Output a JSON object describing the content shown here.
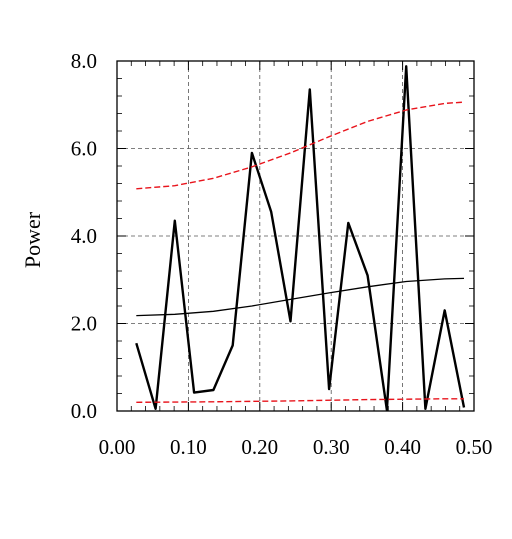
{
  "chart_data": {
    "type": "line",
    "title": "",
    "xlabel": "",
    "ylabel": "Power",
    "xlim": [
      0.0,
      0.5
    ],
    "ylim": [
      0.0,
      8.0
    ],
    "x_ticks": [
      "0.00",
      "0.10",
      "0.20",
      "0.30",
      "0.40",
      "0.50"
    ],
    "y_ticks": [
      "0.0",
      "2.0",
      "4.0",
      "6.0",
      "8.0"
    ],
    "grid": true,
    "legend": "none",
    "series": [
      {
        "color": "#000000",
        "style": "solid-thick",
        "x": [
          0.027,
          0.054,
          0.081,
          0.108,
          0.135,
          0.162,
          0.189,
          0.216,
          0.243,
          0.27,
          0.297,
          0.324,
          0.351,
          0.378,
          0.405,
          0.432,
          0.459,
          0.486
        ],
        "y": [
          1.55,
          0.05,
          4.35,
          0.42,
          0.48,
          1.5,
          5.9,
          4.55,
          2.05,
          7.35,
          0.5,
          4.3,
          3.1,
          0.02,
          7.88,
          0.05,
          2.3,
          0.08
        ]
      },
      {
        "color": "#000000",
        "style": "solid-thin",
        "x": [
          0.027,
          0.081,
          0.135,
          0.189,
          0.243,
          0.297,
          0.351,
          0.405,
          0.459,
          0.486
        ],
        "y": [
          2.18,
          2.21,
          2.28,
          2.4,
          2.55,
          2.7,
          2.84,
          2.96,
          3.02,
          3.03
        ]
      },
      {
        "color": "#e8141c",
        "style": "dashed",
        "x": [
          0.027,
          0.081,
          0.135,
          0.189,
          0.243,
          0.297,
          0.351,
          0.405,
          0.459,
          0.486
        ],
        "y": [
          5.08,
          5.15,
          5.32,
          5.58,
          5.9,
          6.27,
          6.62,
          6.88,
          7.03,
          7.06
        ]
      },
      {
        "color": "#e8141c",
        "style": "dashed",
        "x": [
          0.027,
          0.135,
          0.243,
          0.351,
          0.459,
          0.486
        ],
        "y": [
          0.2,
          0.21,
          0.23,
          0.26,
          0.28,
          0.28
        ]
      }
    ]
  }
}
